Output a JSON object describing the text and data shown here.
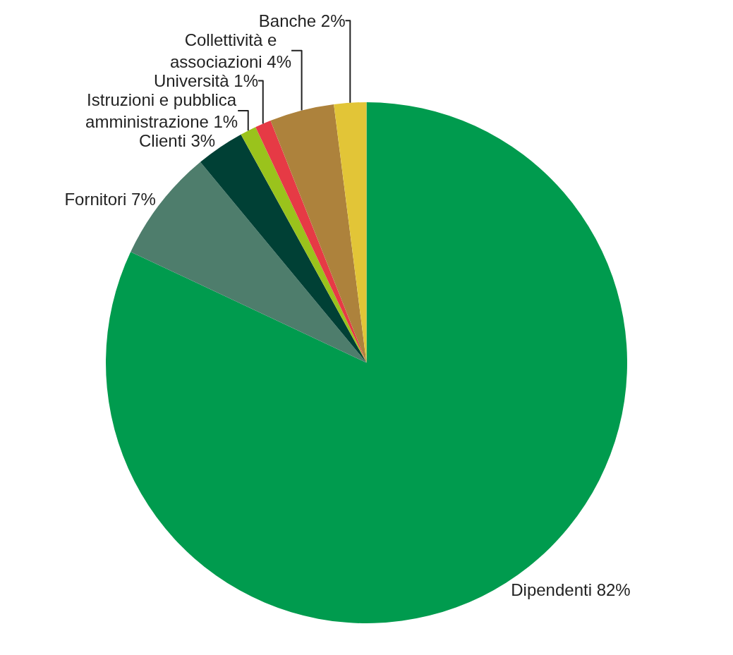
{
  "chart_data": {
    "type": "pie",
    "categories": [
      "Dipendenti",
      "Fornitori",
      "Clienti",
      "Istruzioni e pubblica amministrazione",
      "Università",
      "Collettività e associazioni",
      "Banche"
    ],
    "values": [
      82,
      7,
      3,
      1,
      1,
      4,
      2
    ],
    "value_labels": [
      "82%",
      "7%",
      "3%",
      "1%",
      "1%",
      "4%",
      "2%"
    ],
    "colors": [
      "#009b4e",
      "#4e7d6c",
      "#004035",
      "#9ac31c",
      "#e63a45",
      "#ad823c",
      "#e2c537"
    ],
    "legend": false
  }
}
